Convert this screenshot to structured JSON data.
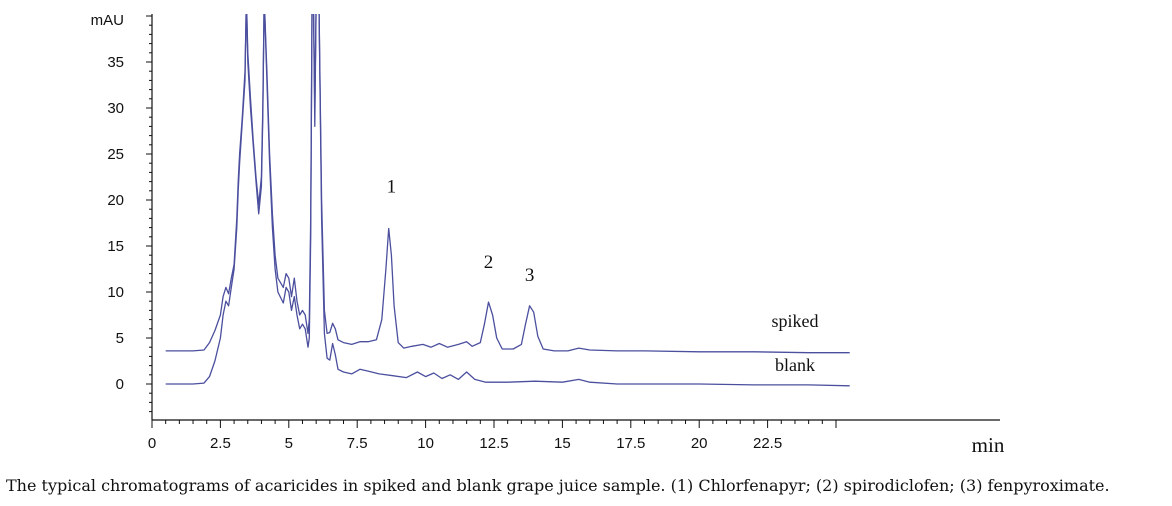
{
  "caption": "The typical chromatograms of acaricides in spiked and blank grape juice sample. (1) Chlorfenapyr; (2) spirodiclofen; (3) fenpyroximate.",
  "chart_data": {
    "type": "line",
    "ylabel": "mAU",
    "xlabel": "min",
    "xlim": [
      0,
      25.5
    ],
    "ylim": [
      -4,
      40
    ],
    "x_ticks": [
      {
        "value": 0,
        "label": "0"
      },
      {
        "value": 2.5,
        "label": "2.5"
      },
      {
        "value": 5,
        "label": "5"
      },
      {
        "value": 7.5,
        "label": "7.5"
      },
      {
        "value": 10,
        "label": "10"
      },
      {
        "value": 12.5,
        "label": "12.5"
      },
      {
        "value": 15,
        "label": "15"
      },
      {
        "value": 17.5,
        "label": "17.5"
      },
      {
        "value": 20,
        "label": "20"
      },
      {
        "value": 22.5,
        "label": "22.5"
      }
    ],
    "y_ticks": [
      {
        "value": 0,
        "label": "0"
      },
      {
        "value": 5,
        "label": "5"
      },
      {
        "value": 10,
        "label": "10"
      },
      {
        "value": 15,
        "label": "15"
      },
      {
        "value": 20,
        "label": "20"
      },
      {
        "value": 25,
        "label": "25"
      },
      {
        "value": 30,
        "label": "30"
      },
      {
        "value": 35,
        "label": "35"
      }
    ],
    "line_color": "#4b4f9e",
    "series": [
      {
        "name": "spiked",
        "x": [
          0.5,
          1.5,
          1.9,
          2.1,
          2.3,
          2.5,
          2.6,
          2.7,
          2.8,
          2.9,
          3.0,
          3.1,
          3.15,
          3.2,
          3.3,
          3.4,
          3.45,
          3.5,
          3.6,
          3.7,
          3.8,
          3.9,
          4.0,
          4.05,
          4.1,
          4.2,
          4.3,
          4.4,
          4.5,
          4.6,
          4.8,
          4.9,
          5.0,
          5.1,
          5.2,
          5.3,
          5.4,
          5.5,
          5.6,
          5.7,
          5.75,
          5.8,
          5.85,
          5.9,
          5.95,
          6.0,
          6.05,
          6.1,
          6.2,
          6.3,
          6.4,
          6.5,
          6.6,
          6.7,
          6.8,
          7.0,
          7.3,
          7.6,
          7.9,
          8.2,
          8.4,
          8.55,
          8.65,
          8.75,
          8.85,
          9.0,
          9.2,
          9.5,
          9.9,
          10.2,
          10.5,
          10.8,
          11.2,
          11.5,
          11.7,
          12.0,
          12.15,
          12.3,
          12.45,
          12.6,
          12.8,
          13.2,
          13.5,
          13.65,
          13.8,
          13.95,
          14.1,
          14.3,
          14.7,
          15.2,
          15.6,
          16.0,
          17.0,
          18.0,
          20.0,
          22.0,
          24.0,
          25.5
        ],
        "y": [
          3.6,
          3.6,
          3.7,
          4.5,
          5.8,
          7.5,
          9.5,
          10.5,
          9.8,
          11.5,
          13.0,
          18.0,
          22.0,
          25.0,
          29.0,
          34.0,
          42.0,
          36.0,
          31.0,
          26.5,
          22.5,
          19.5,
          22.5,
          30.0,
          42.0,
          34.0,
          25.0,
          18.5,
          14.0,
          11.5,
          10.5,
          12.0,
          11.5,
          9.5,
          11.5,
          9.0,
          7.5,
          8.0,
          7.5,
          5.5,
          7.0,
          18.0,
          42.0,
          42.0,
          30.0,
          42.0,
          42.0,
          42.0,
          20.0,
          8.0,
          5.5,
          5.6,
          6.6,
          6.0,
          4.8,
          4.5,
          4.3,
          4.6,
          4.6,
          4.8,
          7.0,
          12.5,
          16.9,
          14.0,
          8.5,
          4.5,
          3.9,
          4.1,
          4.3,
          4.0,
          4.4,
          4.0,
          4.3,
          4.6,
          4.1,
          4.5,
          6.5,
          8.9,
          7.5,
          5.0,
          3.8,
          3.8,
          4.3,
          6.5,
          8.5,
          7.8,
          5.2,
          3.8,
          3.6,
          3.6,
          3.9,
          3.7,
          3.6,
          3.6,
          3.5,
          3.5,
          3.4,
          3.4
        ]
      },
      {
        "name": "blank",
        "x": [
          0.5,
          1.5,
          1.9,
          2.1,
          2.3,
          2.5,
          2.6,
          2.7,
          2.8,
          2.9,
          3.0,
          3.1,
          3.15,
          3.2,
          3.3,
          3.4,
          3.45,
          3.5,
          3.6,
          3.7,
          3.8,
          3.9,
          4.0,
          4.05,
          4.1,
          4.2,
          4.3,
          4.4,
          4.5,
          4.6,
          4.8,
          4.9,
          5.0,
          5.1,
          5.2,
          5.3,
          5.4,
          5.5,
          5.6,
          5.7,
          5.75,
          5.8,
          5.85,
          5.9,
          5.95,
          6.0,
          6.05,
          6.1,
          6.2,
          6.3,
          6.4,
          6.5,
          6.6,
          6.7,
          6.8,
          7.0,
          7.3,
          7.6,
          7.9,
          8.3,
          8.8,
          9.3,
          9.7,
          10.0,
          10.3,
          10.6,
          10.9,
          11.2,
          11.5,
          11.8,
          12.2,
          13.0,
          14.0,
          15.0,
          15.6,
          16.0,
          17.0,
          18.0,
          20.0,
          22.0,
          24.0,
          25.5
        ],
        "y": [
          0.0,
          0.0,
          0.1,
          0.8,
          2.5,
          5.0,
          7.5,
          9.0,
          8.5,
          10.5,
          12.5,
          17.0,
          21.0,
          24.0,
          28.5,
          33.0,
          42.0,
          35.0,
          30.0,
          26.0,
          22.0,
          18.5,
          21.5,
          29.0,
          42.0,
          33.0,
          24.0,
          17.0,
          12.5,
          10.0,
          8.8,
          10.5,
          10.0,
          8.0,
          9.5,
          7.5,
          6.0,
          6.5,
          6.0,
          4.0,
          5.0,
          16.0,
          42.0,
          42.0,
          28.0,
          42.0,
          42.0,
          42.0,
          18.0,
          5.5,
          2.8,
          2.6,
          4.4,
          3.2,
          1.6,
          1.3,
          1.1,
          1.6,
          1.4,
          1.1,
          0.9,
          0.7,
          1.3,
          0.8,
          1.2,
          0.6,
          1.0,
          0.5,
          1.3,
          0.5,
          0.2,
          0.2,
          0.3,
          0.2,
          0.5,
          0.2,
          0.0,
          0.0,
          0.0,
          -0.1,
          -0.1,
          -0.2
        ]
      }
    ],
    "series_labels": [
      {
        "text": "spiked",
        "x": 23.5,
        "y": 6.2
      },
      {
        "text": "blank",
        "x": 23.5,
        "y": 1.4
      }
    ],
    "peak_labels": [
      {
        "text": "1",
        "x": 8.75,
        "y": 20.8
      },
      {
        "text": "2",
        "x": 12.3,
        "y": 12.6
      },
      {
        "text": "3",
        "x": 13.8,
        "y": 11.2
      }
    ]
  }
}
